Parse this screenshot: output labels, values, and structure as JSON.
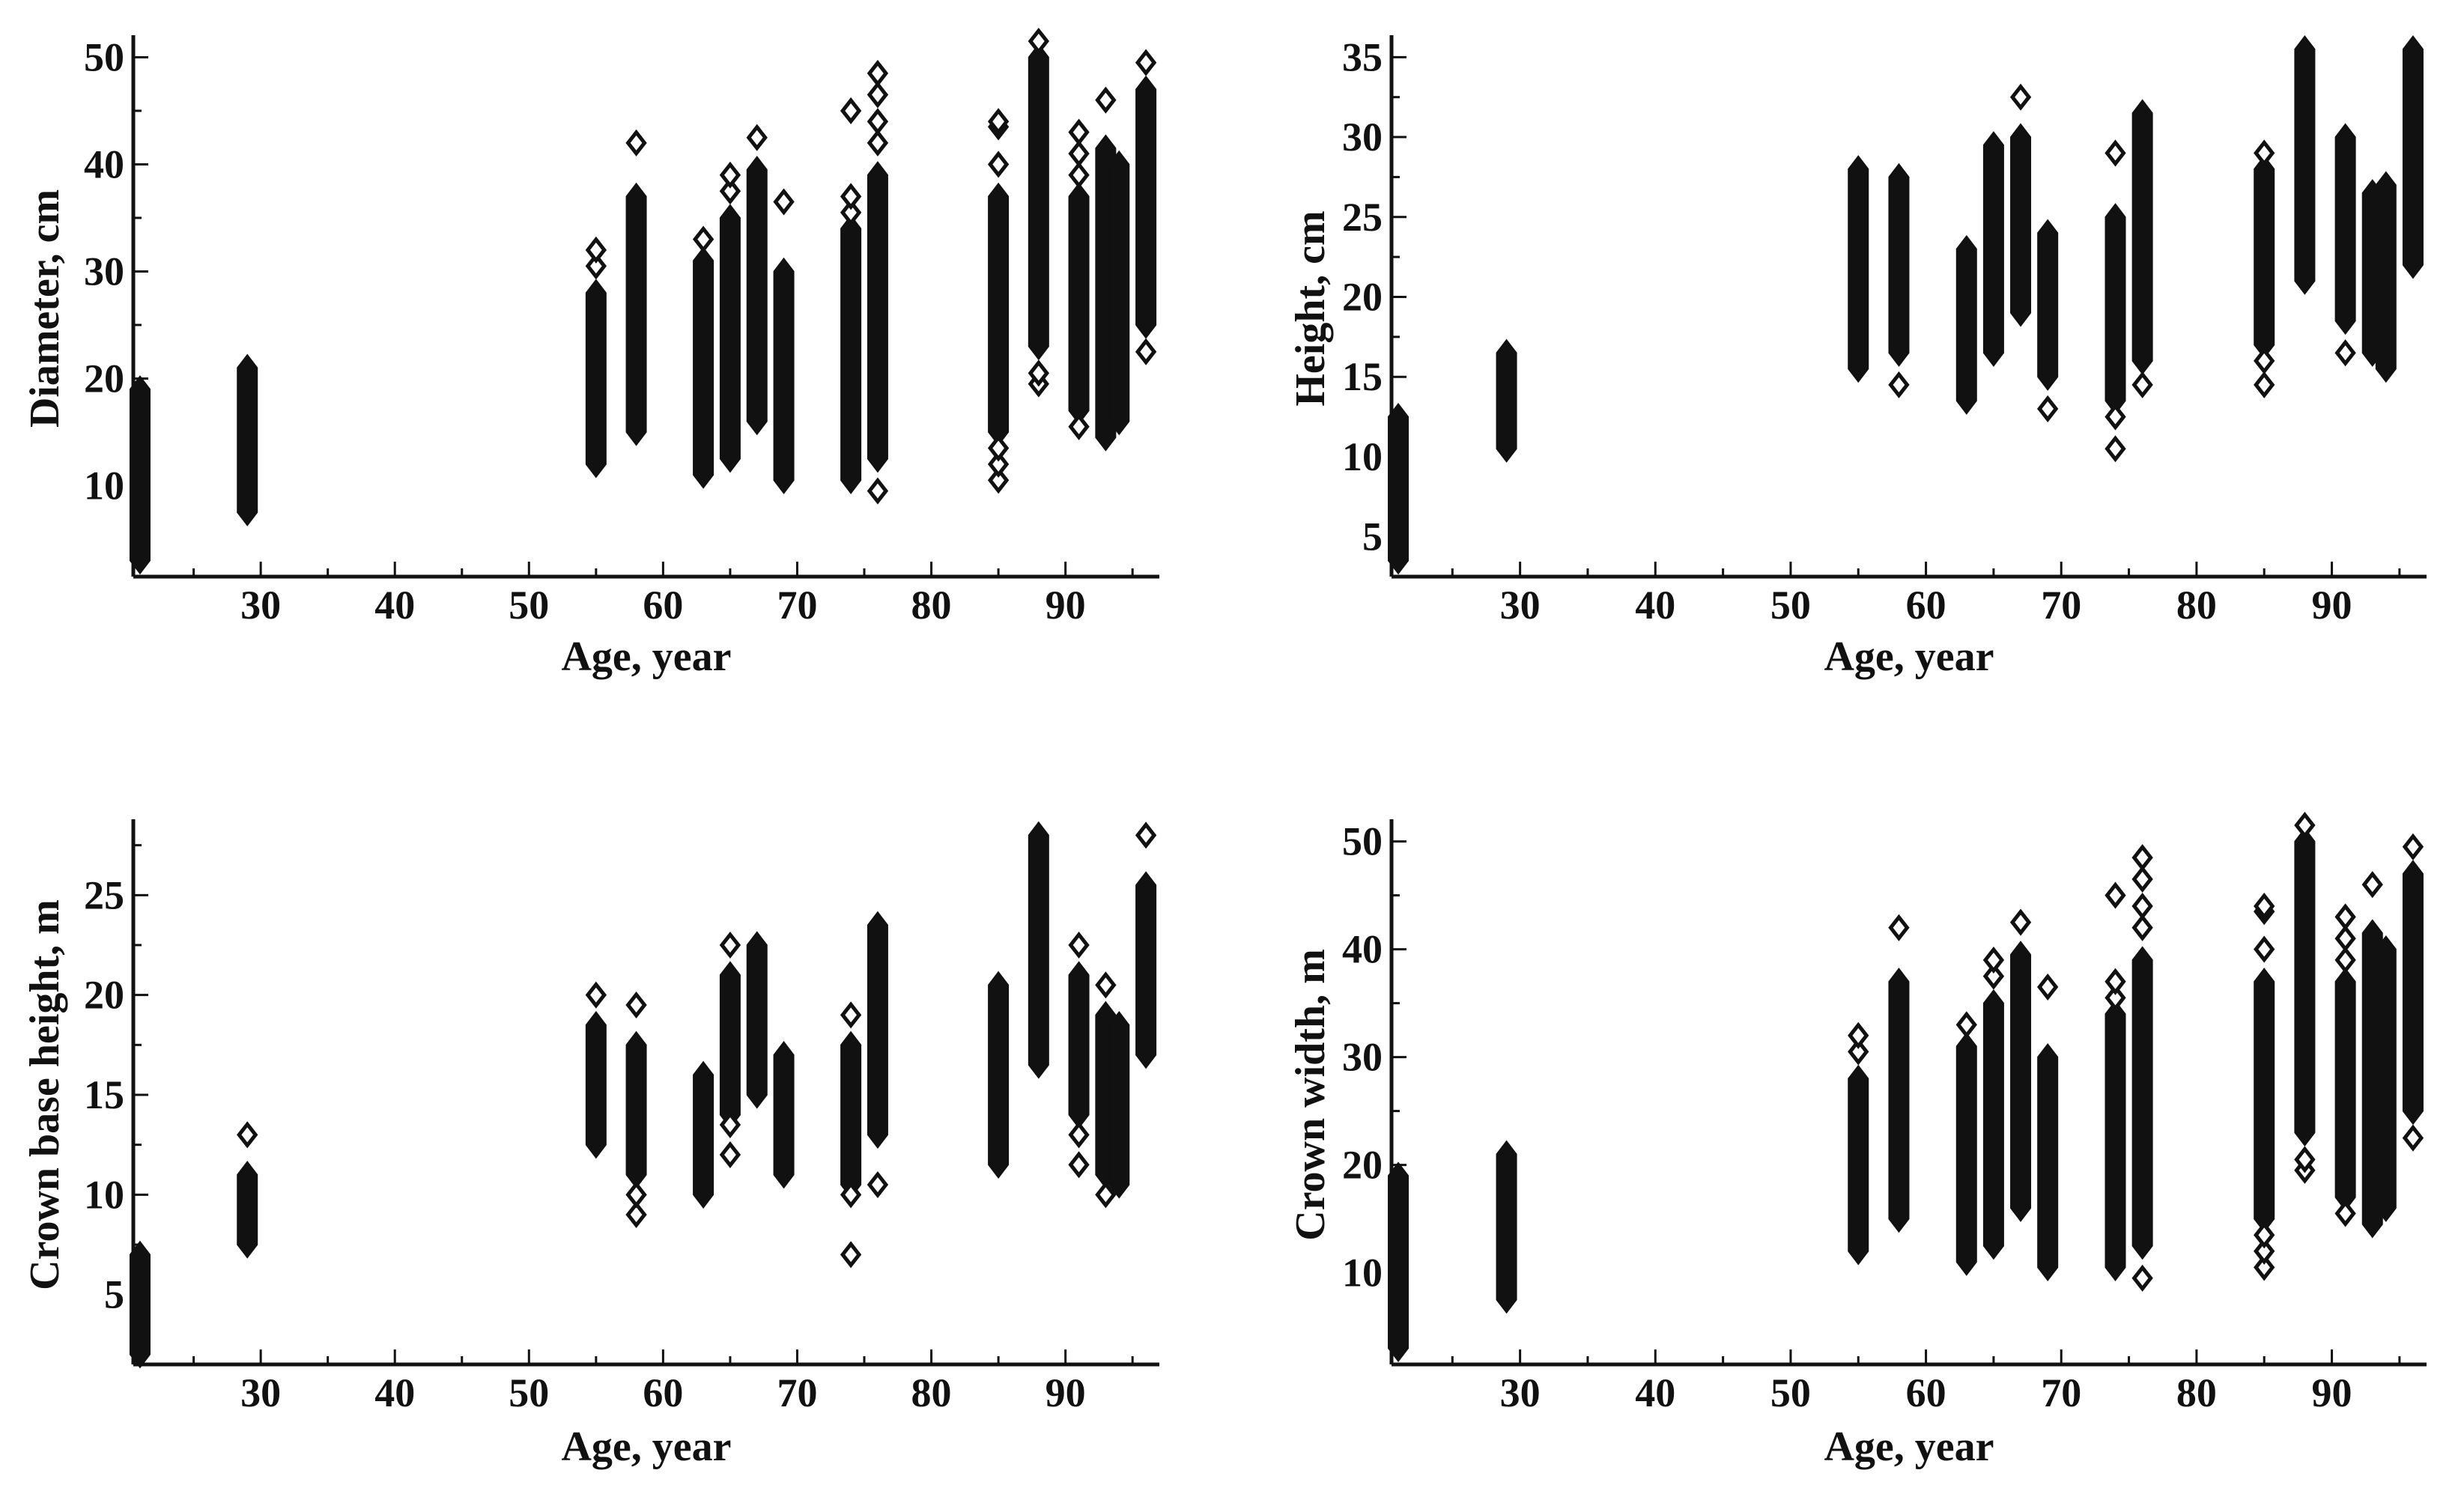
{
  "figure": {
    "background": "#ffffff",
    "ink": "#111111"
  },
  "chart_data": [
    {
      "type": "scatter",
      "panel": "top-left",
      "marker": "diamond-outline",
      "xlabel": "Age, year",
      "ylabel": "Diameter, cm",
      "xlim": [
        20.5,
        97
      ],
      "ylim": [
        1.5,
        51.5
      ],
      "xticks": [
        30,
        40,
        50,
        60,
        70,
        80,
        90
      ],
      "yticks": [
        10,
        20,
        30,
        40,
        50
      ],
      "series": [
        {
          "name": "age-21",
          "x": 21,
          "min": 3,
          "max": 19,
          "outliers": []
        },
        {
          "name": "age-29",
          "x": 29,
          "min": 7.5,
          "max": 21,
          "outliers": []
        },
        {
          "name": "age-55",
          "x": 55,
          "min": 12,
          "max": 28,
          "outliers": [
            30.5,
            32
          ]
        },
        {
          "name": "age-58",
          "x": 58,
          "min": 15,
          "max": 37,
          "outliers": [
            42
          ]
        },
        {
          "name": "age-63",
          "x": 63,
          "min": 11,
          "max": 31,
          "outliers": [
            33
          ]
        },
        {
          "name": "age-65",
          "x": 65,
          "min": 12.5,
          "max": 35,
          "outliers": [
            37.5,
            39
          ]
        },
        {
          "name": "age-67",
          "x": 67,
          "min": 16,
          "max": 39.5,
          "outliers": [
            42.5
          ]
        },
        {
          "name": "age-69",
          "x": 69,
          "min": 10.5,
          "max": 30,
          "outliers": [
            36.5
          ]
        },
        {
          "name": "age-74",
          "x": 74,
          "min": 10.5,
          "max": 34,
          "outliers": [
            35.5,
            37,
            45
          ]
        },
        {
          "name": "age-76",
          "x": 76,
          "min": 12.5,
          "max": 39,
          "outliers": [
            9.5,
            42,
            44,
            46.5,
            48.5
          ]
        },
        {
          "name": "age-85",
          "x": 85,
          "min": 15,
          "max": 37,
          "outliers": [
            10.5,
            12,
            13.5,
            40,
            43.5,
            44
          ]
        },
        {
          "name": "age-88",
          "x": 88,
          "min": 23,
          "max": 50,
          "outliers": [
            19.5,
            20.5,
            51.5
          ]
        },
        {
          "name": "age-91",
          "x": 91,
          "min": 17,
          "max": 37,
          "outliers": [
            15.5,
            39,
            41,
            43
          ]
        },
        {
          "name": "age-93",
          "x": 93,
          "min": 14.5,
          "max": 41.5,
          "outliers": [
            46
          ]
        },
        {
          "name": "age-94",
          "x": 94,
          "min": 16,
          "max": 40,
          "outliers": []
        },
        {
          "name": "age-96",
          "x": 96,
          "min": 25,
          "max": 47,
          "outliers": [
            22.5,
            49.5
          ]
        }
      ]
    },
    {
      "type": "scatter",
      "panel": "top-right",
      "marker": "diamond-outline",
      "xlabel": "Age, year",
      "ylabel": "Height, cm",
      "xlim": [
        20.5,
        97
      ],
      "ylim": [
        2.5,
        36
      ],
      "xticks": [
        30,
        40,
        50,
        60,
        70,
        80,
        90
      ],
      "yticks": [
        5,
        10,
        15,
        20,
        25,
        30,
        35
      ],
      "series": [
        {
          "name": "age-21",
          "x": 21,
          "min": 3.5,
          "max": 12.5,
          "outliers": []
        },
        {
          "name": "age-29",
          "x": 29,
          "min": 10.5,
          "max": 16.5,
          "outliers": []
        },
        {
          "name": "age-55",
          "x": 55,
          "min": 15.5,
          "max": 28,
          "outliers": []
        },
        {
          "name": "age-58",
          "x": 58,
          "min": 16.5,
          "max": 27.5,
          "outliers": [
            14.5
          ]
        },
        {
          "name": "age-63",
          "x": 63,
          "min": 13.5,
          "max": 23,
          "outliers": []
        },
        {
          "name": "age-65",
          "x": 65,
          "min": 16.5,
          "max": 29.5,
          "outliers": []
        },
        {
          "name": "age-67",
          "x": 67,
          "min": 19,
          "max": 30,
          "outliers": [
            32.5
          ]
        },
        {
          "name": "age-69",
          "x": 69,
          "min": 15,
          "max": 24,
          "outliers": [
            13
          ]
        },
        {
          "name": "age-74",
          "x": 74,
          "min": 13.5,
          "max": 25,
          "outliers": [
            10.5,
            12.5,
            29
          ]
        },
        {
          "name": "age-76",
          "x": 76,
          "min": 16,
          "max": 31.5,
          "outliers": [
            14.5
          ]
        },
        {
          "name": "age-85",
          "x": 85,
          "min": 17,
          "max": 28,
          "outliers": [
            14.5,
            16,
            29
          ]
        },
        {
          "name": "age-88",
          "x": 88,
          "min": 21,
          "max": 35.5,
          "outliers": []
        },
        {
          "name": "age-91",
          "x": 91,
          "min": 18.5,
          "max": 30,
          "outliers": [
            16.5
          ]
        },
        {
          "name": "age-93",
          "x": 93,
          "min": 16.5,
          "max": 26.5,
          "outliers": []
        },
        {
          "name": "age-94",
          "x": 94,
          "min": 15.5,
          "max": 27,
          "outliers": []
        },
        {
          "name": "age-96",
          "x": 96,
          "min": 22,
          "max": 35.5,
          "outliers": []
        }
      ]
    },
    {
      "type": "scatter",
      "panel": "bottom-left",
      "marker": "diamond-outline",
      "xlabel": "Age, year",
      "ylabel": "Crown base height, m",
      "xlim": [
        20.5,
        97
      ],
      "ylim": [
        1.5,
        28.5
      ],
      "xticks": [
        30,
        40,
        50,
        60,
        70,
        80,
        90
      ],
      "yticks": [
        5,
        10,
        15,
        20,
        25
      ],
      "series": [
        {
          "name": "age-21",
          "x": 21,
          "min": 2,
          "max": 7,
          "outliers": []
        },
        {
          "name": "age-29",
          "x": 29,
          "min": 7.5,
          "max": 11,
          "outliers": [
            13
          ]
        },
        {
          "name": "age-55",
          "x": 55,
          "min": 12.5,
          "max": 18.5,
          "outliers": [
            20
          ]
        },
        {
          "name": "age-58",
          "x": 58,
          "min": 11,
          "max": 17.5,
          "outliers": [
            9,
            10,
            19.5
          ]
        },
        {
          "name": "age-63",
          "x": 63,
          "min": 10,
          "max": 16,
          "outliers": []
        },
        {
          "name": "age-65",
          "x": 65,
          "min": 14,
          "max": 21,
          "outliers": [
            12,
            13.5,
            22.5
          ]
        },
        {
          "name": "age-67",
          "x": 67,
          "min": 15,
          "max": 22.5,
          "outliers": []
        },
        {
          "name": "age-69",
          "x": 69,
          "min": 11,
          "max": 17,
          "outliers": []
        },
        {
          "name": "age-74",
          "x": 74,
          "min": 10.5,
          "max": 17.5,
          "outliers": [
            7,
            10,
            19
          ]
        },
        {
          "name": "age-76",
          "x": 76,
          "min": 13,
          "max": 23.5,
          "outliers": [
            10.5
          ]
        },
        {
          "name": "age-85",
          "x": 85,
          "min": 11.5,
          "max": 20.5,
          "outliers": []
        },
        {
          "name": "age-88",
          "x": 88,
          "min": 16.5,
          "max": 28,
          "outliers": []
        },
        {
          "name": "age-91",
          "x": 91,
          "min": 14,
          "max": 21,
          "outliers": [
            11.5,
            13,
            22.5
          ]
        },
        {
          "name": "age-93",
          "x": 93,
          "min": 11,
          "max": 19,
          "outliers": [
            10,
            20.5
          ]
        },
        {
          "name": "age-94",
          "x": 94,
          "min": 10.5,
          "max": 18.5,
          "outliers": []
        },
        {
          "name": "age-96",
          "x": 96,
          "min": 17,
          "max": 25.5,
          "outliers": [
            28
          ]
        }
      ]
    },
    {
      "type": "scatter",
      "panel": "bottom-right",
      "marker": "diamond-outline",
      "xlabel": "Age, year",
      "ylabel": "Crown width, m",
      "xlim": [
        20.5,
        97
      ],
      "ylim": [
        1.5,
        51.5
      ],
      "xticks": [
        30,
        40,
        50,
        60,
        70,
        80,
        90
      ],
      "yticks": [
        10,
        20,
        30,
        40,
        50
      ],
      "series": [
        {
          "name": "age-21",
          "x": 21,
          "min": 3,
          "max": 19,
          "outliers": []
        },
        {
          "name": "age-29",
          "x": 29,
          "min": 7.5,
          "max": 21,
          "outliers": []
        },
        {
          "name": "age-55",
          "x": 55,
          "min": 12,
          "max": 28,
          "outliers": [
            30.5,
            32
          ]
        },
        {
          "name": "age-58",
          "x": 58,
          "min": 15,
          "max": 37,
          "outliers": [
            42
          ]
        },
        {
          "name": "age-63",
          "x": 63,
          "min": 11,
          "max": 31,
          "outliers": [
            33
          ]
        },
        {
          "name": "age-65",
          "x": 65,
          "min": 12.5,
          "max": 35,
          "outliers": [
            37.5,
            39
          ]
        },
        {
          "name": "age-67",
          "x": 67,
          "min": 16,
          "max": 39.5,
          "outliers": [
            42.5
          ]
        },
        {
          "name": "age-69",
          "x": 69,
          "min": 10.5,
          "max": 30,
          "outliers": [
            36.5
          ]
        },
        {
          "name": "age-74",
          "x": 74,
          "min": 10.5,
          "max": 34,
          "outliers": [
            35.5,
            37,
            45
          ]
        },
        {
          "name": "age-76",
          "x": 76,
          "min": 12.5,
          "max": 39,
          "outliers": [
            9.5,
            42,
            44,
            46.5,
            48.5
          ]
        },
        {
          "name": "age-85",
          "x": 85,
          "min": 15,
          "max": 37,
          "outliers": [
            10.5,
            12,
            13.5,
            40,
            43.5,
            44
          ]
        },
        {
          "name": "age-88",
          "x": 88,
          "min": 23,
          "max": 50,
          "outliers": [
            19.5,
            20.5,
            51.5
          ]
        },
        {
          "name": "age-91",
          "x": 91,
          "min": 17,
          "max": 37,
          "outliers": [
            15.5,
            39,
            41,
            43
          ]
        },
        {
          "name": "age-93",
          "x": 93,
          "min": 14.5,
          "max": 41.5,
          "outliers": [
            46
          ]
        },
        {
          "name": "age-94",
          "x": 94,
          "min": 16,
          "max": 40,
          "outliers": []
        },
        {
          "name": "age-96",
          "x": 96,
          "min": 25,
          "max": 47,
          "outliers": [
            22.5,
            49.5
          ]
        }
      ]
    }
  ]
}
